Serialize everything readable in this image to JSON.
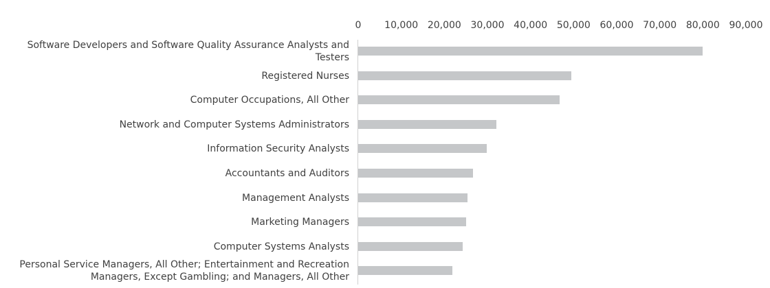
{
  "chart_data": {
    "type": "bar",
    "orientation": "horizontal",
    "title": "",
    "xlabel": "",
    "ylabel": "",
    "xlim": [
      0,
      90000
    ],
    "tick_values": [
      0,
      10000,
      20000,
      30000,
      40000,
      50000,
      60000,
      70000,
      80000,
      90000
    ],
    "tick_labels": [
      "0",
      "10,000",
      "20,000",
      "30,000",
      "40,000",
      "50,000",
      "60,000",
      "70,000",
      "80,000",
      "90,000"
    ],
    "axis_position": "top",
    "grid": false,
    "categories": [
      "Software Developers and Software Quality Assurance Analysts and Testers",
      "Registered Nurses",
      "Computer Occupations, All Other",
      "Network and Computer Systems Administrators",
      "Information Security Analysts",
      "Accountants and Auditors",
      "Management Analysts",
      "Marketing Managers",
      "Computer Systems Analysts",
      "Personal Service Managers, All Other; Entertainment and Recreation Managers, Except Gambling; and Managers, All Other"
    ],
    "values": [
      80000,
      49500,
      46800,
      32100,
      29800,
      26600,
      25400,
      25000,
      24200,
      21900
    ],
    "bar_color": "#c5c7c9"
  }
}
